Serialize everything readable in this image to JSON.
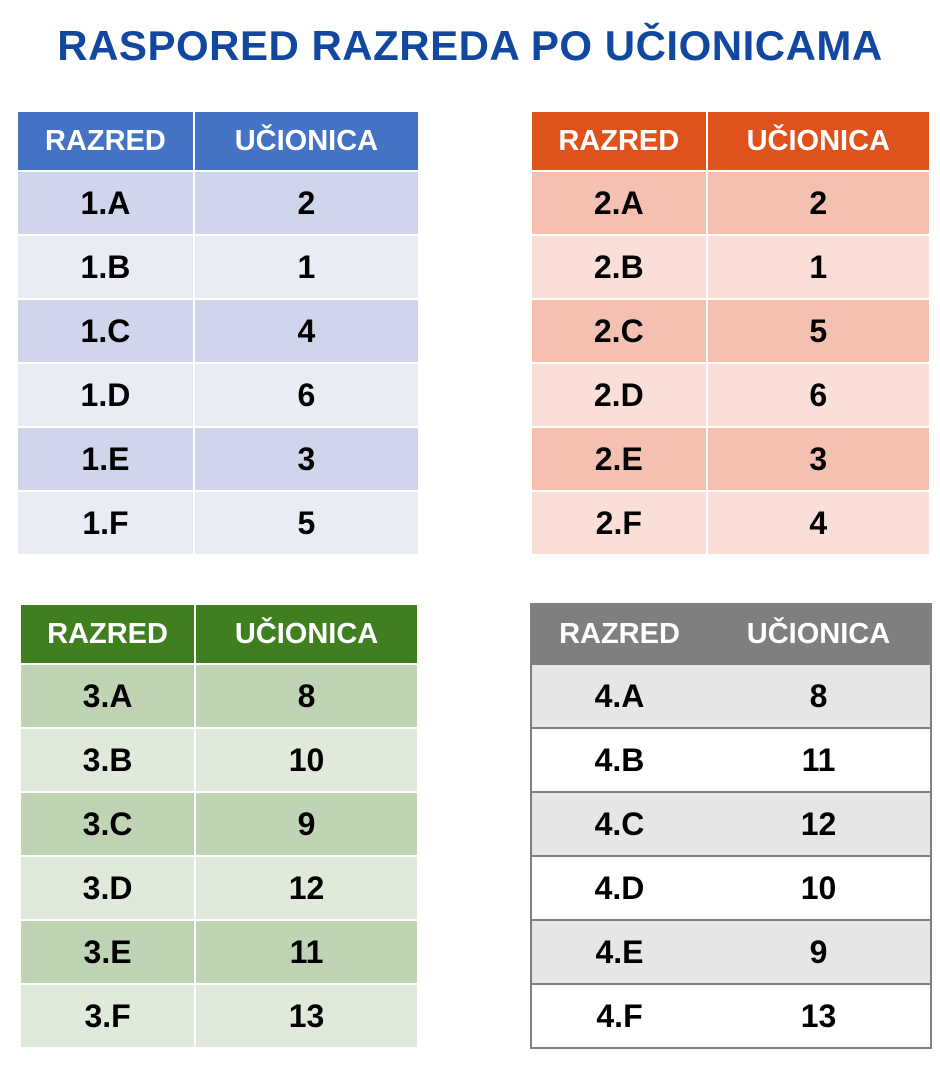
{
  "title": "RASPORED RAZREDA PO UČIONICAMA",
  "headers": {
    "class": "RAZRED",
    "room": "UČIONICA"
  },
  "tables": [
    {
      "color": "#4472c4",
      "rows": [
        {
          "razred": "1.A",
          "ucionica": "2"
        },
        {
          "razred": "1.B",
          "ucionica": "1"
        },
        {
          "razred": "1.C",
          "ucionica": "4"
        },
        {
          "razred": "1.D",
          "ucionica": "6"
        },
        {
          "razred": "1.E",
          "ucionica": "3"
        },
        {
          "razred": "1.F",
          "ucionica": "5"
        }
      ]
    },
    {
      "color": "#e0521b",
      "rows": [
        {
          "razred": "2.A",
          "ucionica": "2"
        },
        {
          "razred": "2.B",
          "ucionica": "1"
        },
        {
          "razred": "2.C",
          "ucionica": "5"
        },
        {
          "razred": "2.D",
          "ucionica": "6"
        },
        {
          "razred": "2.E",
          "ucionica": "3"
        },
        {
          "razred": "2.F",
          "ucionica": "4"
        }
      ]
    },
    {
      "color": "#3f7f1f",
      "rows": [
        {
          "razred": "3.A",
          "ucionica": "8"
        },
        {
          "razred": "3.B",
          "ucionica": "10"
        },
        {
          "razred": "3.C",
          "ucionica": "9"
        },
        {
          "razred": "3.D",
          "ucionica": "12"
        },
        {
          "razred": "3.E",
          "ucionica": "11"
        },
        {
          "razred": "3.F",
          "ucionica": "13"
        }
      ]
    },
    {
      "color": "#7f7f7f",
      "rows": [
        {
          "razred": "4.A",
          "ucionica": "8"
        },
        {
          "razred": "4.B",
          "ucionica": "11"
        },
        {
          "razred": "4.C",
          "ucionica": "12"
        },
        {
          "razred": "4.D",
          "ucionica": "10"
        },
        {
          "razred": "4.E",
          "ucionica": "9"
        },
        {
          "razred": "4.F",
          "ucionica": "13"
        }
      ]
    }
  ]
}
